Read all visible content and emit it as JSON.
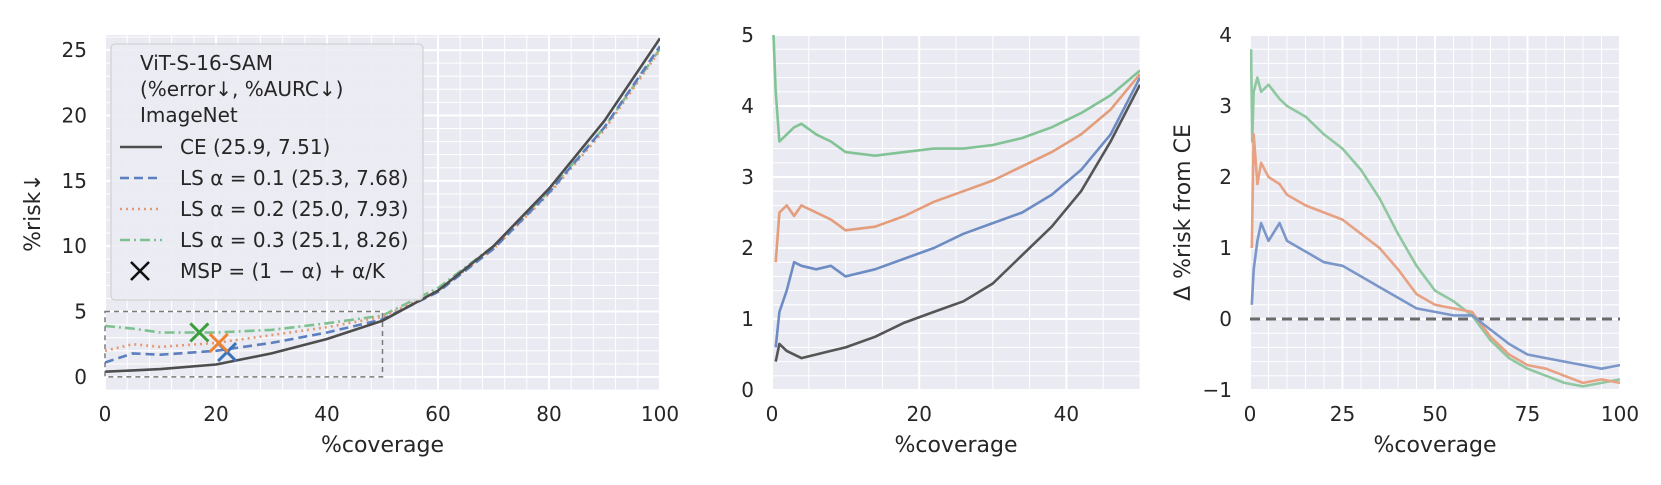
{
  "chart_data": [
    {
      "type": "line",
      "xlabel": "%coverage",
      "ylabel": "%risk↓",
      "xlim": [
        0,
        100
      ],
      "ylim": [
        -1,
        26
      ],
      "xticks": [
        "0",
        "20",
        "40",
        "60",
        "80",
        "100"
      ],
      "yticks": [
        "0",
        "5",
        "10",
        "15",
        "20",
        "25"
      ],
      "grid": true,
      "legend": {
        "placement": "top-left",
        "title_lines": [
          "ViT-S-16-SAM",
          "(%error↓, %AURC↓)",
          "ImageNet"
        ],
        "marker_label": "MSP = (1 − α) + α/K"
      },
      "series": [
        {
          "name": "CE (25.9, 7.51)",
          "color": "#4d4d4d",
          "style": "solid",
          "x": [
            0,
            5,
            10,
            20,
            30,
            40,
            50,
            60,
            70,
            80,
            90,
            100
          ],
          "y": [
            0.4,
            0.5,
            0.6,
            0.95,
            1.8,
            2.9,
            4.3,
            6.6,
            10.0,
            14.4,
            19.6,
            25.9
          ]
        },
        {
          "name": "LS α = 0.1 (25.3, 7.68)",
          "color": "#5b7fbf",
          "style": "dashed",
          "x": [
            0,
            5,
            10,
            20,
            30,
            40,
            50,
            60,
            70,
            80,
            90,
            100
          ],
          "y": [
            1.1,
            1.8,
            1.7,
            2.0,
            2.6,
            3.4,
            4.4,
            6.5,
            9.8,
            14.1,
            19.1,
            25.3
          ]
        },
        {
          "name": "LS α = 0.2 (25.0, 7.93)",
          "color": "#e39a74",
          "style": "dotted",
          "x": [
            0,
            5,
            10,
            20,
            30,
            40,
            50,
            60,
            70,
            80,
            90,
            100
          ],
          "y": [
            2.0,
            2.5,
            2.3,
            2.6,
            3.2,
            3.8,
            4.6,
            6.6,
            9.8,
            14.0,
            18.9,
            25.0
          ]
        },
        {
          "name": "LS α = 0.3 (25.1, 8.26)",
          "color": "#7cc190",
          "style": "dashdot",
          "x": [
            0,
            5,
            10,
            20,
            30,
            40,
            50,
            60,
            70,
            80,
            90,
            100
          ],
          "y": [
            3.9,
            3.7,
            3.4,
            3.4,
            3.6,
            4.1,
            4.7,
            6.8,
            10.0,
            14.2,
            19.1,
            25.1
          ]
        }
      ],
      "msp_markers": [
        {
          "x": 22,
          "y": 1.9,
          "color": "#3b73b9"
        },
        {
          "x": 20.5,
          "y": 2.6,
          "color": "#ee8433"
        },
        {
          "x": 17,
          "y": 3.4,
          "color": "#3c9f3c"
        }
      ],
      "zoom_box": {
        "x": [
          0,
          50
        ],
        "y": [
          0,
          5
        ]
      }
    },
    {
      "type": "line",
      "xlabel": "%coverage",
      "xlim": [
        0,
        50
      ],
      "ylim": [
        0,
        5
      ],
      "xticks": [
        "0",
        "20",
        "40"
      ],
      "yticks": [
        "0",
        "1",
        "2",
        "3",
        "4",
        "5"
      ],
      "grid": true,
      "series": [
        {
          "name": "CE",
          "color": "#555555",
          "x": [
            0.5,
            1,
            2,
            4,
            6,
            8,
            10,
            14,
            18,
            22,
            26,
            30,
            34,
            38,
            42,
            46,
            50
          ],
          "y": [
            0.4,
            0.65,
            0.55,
            0.45,
            0.5,
            0.55,
            0.6,
            0.75,
            0.95,
            1.1,
            1.25,
            1.5,
            1.9,
            2.3,
            2.8,
            3.5,
            4.3
          ]
        },
        {
          "name": "LS α = 0.1",
          "color": "#6d8cc4",
          "x": [
            0.5,
            1,
            2,
            3,
            4,
            6,
            8,
            10,
            14,
            18,
            22,
            26,
            30,
            34,
            38,
            42,
            46,
            50
          ],
          "y": [
            0.6,
            1.1,
            1.4,
            1.8,
            1.75,
            1.7,
            1.75,
            1.6,
            1.7,
            1.85,
            2.0,
            2.2,
            2.35,
            2.5,
            2.75,
            3.1,
            3.6,
            4.4
          ]
        },
        {
          "name": "LS α = 0.2",
          "color": "#e49d7a",
          "x": [
            0.5,
            1,
            2,
            3,
            4,
            6,
            8,
            10,
            14,
            18,
            22,
            26,
            30,
            34,
            38,
            42,
            46,
            50
          ],
          "y": [
            1.8,
            2.5,
            2.6,
            2.45,
            2.6,
            2.5,
            2.4,
            2.25,
            2.3,
            2.45,
            2.65,
            2.8,
            2.95,
            3.15,
            3.35,
            3.6,
            3.95,
            4.45
          ]
        },
        {
          "name": "LS α = 0.3",
          "color": "#82c396",
          "x": [
            0.2,
            0.5,
            1,
            2,
            3,
            4,
            6,
            8,
            10,
            14,
            18,
            22,
            26,
            30,
            34,
            38,
            42,
            46,
            50
          ],
          "y": [
            5.0,
            4.2,
            3.5,
            3.6,
            3.7,
            3.75,
            3.6,
            3.5,
            3.35,
            3.3,
            3.35,
            3.4,
            3.4,
            3.45,
            3.55,
            3.7,
            3.9,
            4.15,
            4.5
          ]
        }
      ]
    },
    {
      "type": "line",
      "xlabel": "%coverage",
      "ylabel": "Δ %risk from CE",
      "xlim": [
        0,
        100
      ],
      "ylim": [
        -1,
        4
      ],
      "xticks": [
        "0",
        "25",
        "50",
        "75",
        "100"
      ],
      "yticks": [
        "−1",
        "0",
        "1",
        "2",
        "3",
        "4"
      ],
      "grid": true,
      "reference_line": {
        "y": 0,
        "color": "#6a6a6a",
        "style": "dashed"
      },
      "series": [
        {
          "name": "LS α = 0.1",
          "color": "#7b97c9",
          "x": [
            0.5,
            1,
            2,
            3,
            5,
            8,
            10,
            15,
            20,
            25,
            30,
            35,
            40,
            45,
            50,
            55,
            60,
            65,
            70,
            75,
            80,
            85,
            90,
            95,
            100
          ],
          "y": [
            0.2,
            0.7,
            1.1,
            1.35,
            1.1,
            1.35,
            1.1,
            0.95,
            0.8,
            0.75,
            0.6,
            0.45,
            0.3,
            0.15,
            0.1,
            0.05,
            0.05,
            -0.15,
            -0.35,
            -0.5,
            -0.55,
            -0.6,
            -0.65,
            -0.7,
            -0.65
          ]
        },
        {
          "name": "LS α = 0.2",
          "color": "#e7a183",
          "x": [
            0.5,
            1,
            2,
            3,
            5,
            8,
            10,
            15,
            20,
            25,
            30,
            35,
            40,
            45,
            50,
            55,
            60,
            65,
            70,
            75,
            80,
            85,
            90,
            95,
            100
          ],
          "y": [
            1.0,
            2.6,
            1.9,
            2.2,
            2.0,
            1.9,
            1.75,
            1.6,
            1.5,
            1.4,
            1.2,
            1.0,
            0.7,
            0.35,
            0.2,
            0.15,
            0.1,
            -0.25,
            -0.5,
            -0.65,
            -0.7,
            -0.8,
            -0.9,
            -0.85,
            -0.9
          ]
        },
        {
          "name": "LS α = 0.3",
          "color": "#8fc8a0",
          "x": [
            0.3,
            0.6,
            1,
            2,
            3,
            5,
            8,
            10,
            15,
            20,
            25,
            30,
            35,
            40,
            45,
            50,
            55,
            60,
            65,
            70,
            75,
            80,
            85,
            90,
            95,
            100
          ],
          "y": [
            3.8,
            2.5,
            3.2,
            3.4,
            3.2,
            3.3,
            3.1,
            3.0,
            2.85,
            2.6,
            2.4,
            2.1,
            1.7,
            1.2,
            0.75,
            0.4,
            0.25,
            0.05,
            -0.3,
            -0.55,
            -0.7,
            -0.8,
            -0.9,
            -0.95,
            -0.9,
            -0.85
          ]
        }
      ]
    }
  ]
}
